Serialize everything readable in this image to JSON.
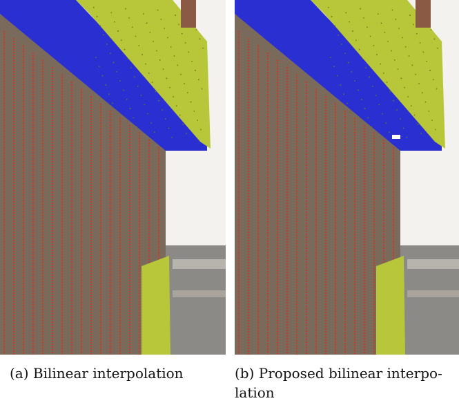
{
  "figure": {
    "subfigures": [
      {
        "id": "a",
        "label": "(a)",
        "caption": "Bilinear interpolation"
      },
      {
        "id": "b",
        "label": "(b)",
        "caption": "Proposed bilinear interpo-\nlation"
      }
    ]
  },
  "colors": {
    "wall": "#7a6a5c",
    "stripe": "#d9331d",
    "roof": "#b8c63a",
    "roof_dots": "#6d7a1c",
    "edge": "#2a2fd1",
    "sky": "#f4f2ef",
    "building_bg": "#8c8a86"
  }
}
